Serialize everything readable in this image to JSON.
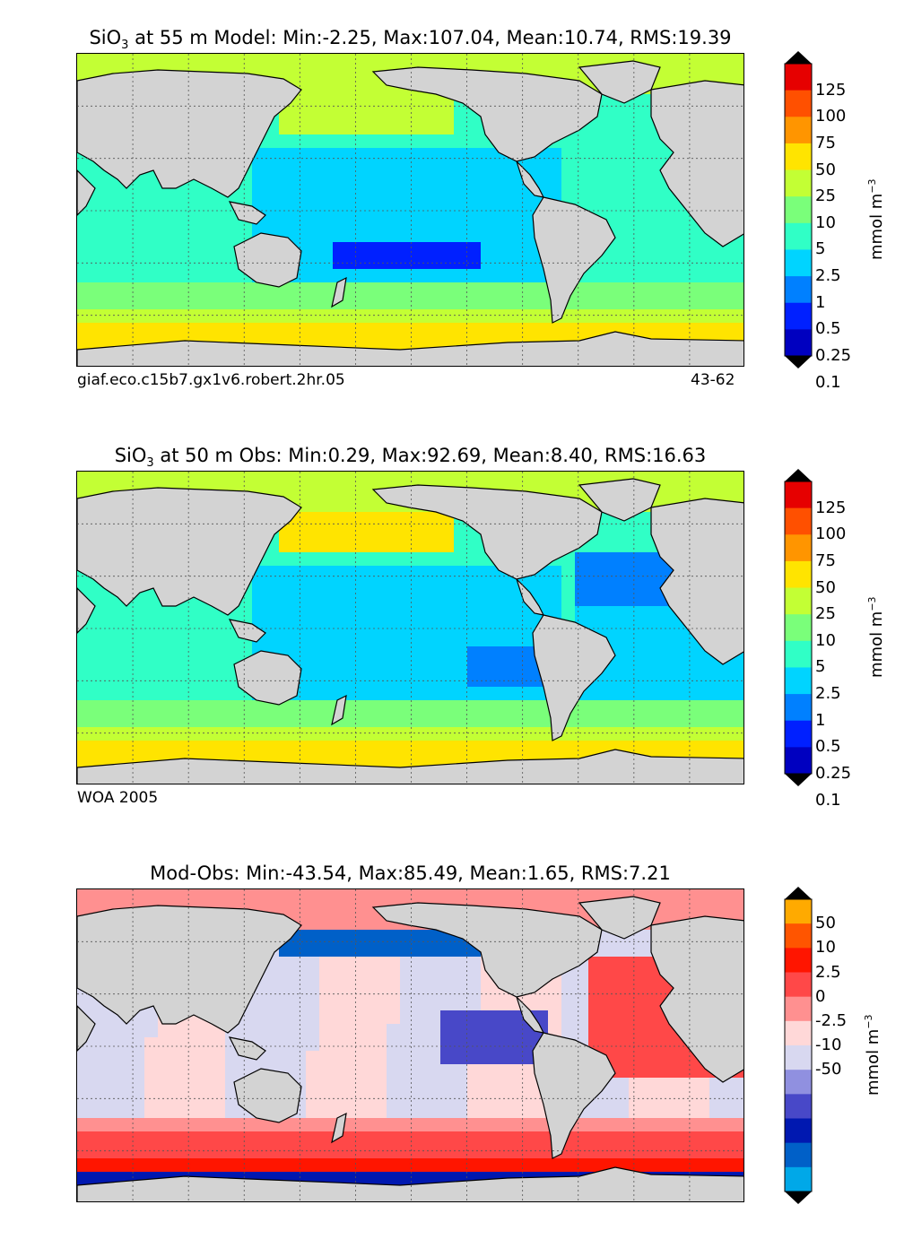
{
  "panels": [
    {
      "id": "model",
      "title_prefix": "SiO",
      "title_sub": "3",
      "title_rest": " at 55 m Model: Min:-2.25, Max:107.04, Mean:10.74, RMS:19.39",
      "caption_left": "giaf.eco.c15b7.gx1v6.robert.2hr.05",
      "caption_right": "43-62",
      "colorbar": {
        "ticks": [
          "125",
          "100",
          "75",
          "50",
          "25",
          "10",
          "5",
          "2.5",
          "1",
          "0.5",
          "0.25",
          "0.1"
        ],
        "colors": [
          "#800000",
          "#e60000",
          "#ff5000",
          "#ff9500",
          "#ffe400",
          "#c3ff34",
          "#7aff7a",
          "#30ffc6",
          "#00d4ff",
          "#0080ff",
          "#0020ff",
          "#0000c0",
          "#000080"
        ],
        "label": "mmol m",
        "label_sup": "−3"
      }
    },
    {
      "id": "obs",
      "title_prefix": "SiO",
      "title_sub": "3",
      "title_rest": " at 50 m Obs: Min:0.29, Max:92.69, Mean:8.40, RMS:16.63",
      "caption_left": "WOA 2005",
      "caption_right": "",
      "colorbar": {
        "ticks": [
          "125",
          "100",
          "75",
          "50",
          "25",
          "10",
          "5",
          "2.5",
          "1",
          "0.5",
          "0.25",
          "0.1"
        ],
        "colors": [
          "#800000",
          "#e60000",
          "#ff5000",
          "#ff9500",
          "#ffe400",
          "#c3ff34",
          "#7aff7a",
          "#30ffc6",
          "#00d4ff",
          "#0080ff",
          "#0020ff",
          "#0000c0",
          "#000080"
        ],
        "label": "mmol m",
        "label_sup": "−3"
      }
    },
    {
      "id": "diff",
      "title_prefix": "Mod-Obs: Min:-43.54, Max:85.49, Mean:1.65, RMS:7.21",
      "title_sub": "",
      "title_rest": "",
      "caption_left": "",
      "caption_right": "",
      "colorbar": {
        "ticks": [
          "50",
          "10",
          "2.5",
          "0",
          "-2.5",
          "-10",
          "-50"
        ],
        "colors": [
          "#ffff00",
          "#ffaa00",
          "#ff5500",
          "#ff1500",
          "#ff4848",
          "#ff9090",
          "#ffd8d8",
          "#d8d8f0",
          "#9090e0",
          "#4848c8",
          "#0018b0",
          "#0060c8",
          "#00a8e8",
          "#00ffff"
        ],
        "label": "mmol m",
        "label_sup": "−3"
      }
    }
  ],
  "map_colors": {
    "land": "#d3d3d3",
    "coast": "#000000",
    "grid": "#555555"
  }
}
